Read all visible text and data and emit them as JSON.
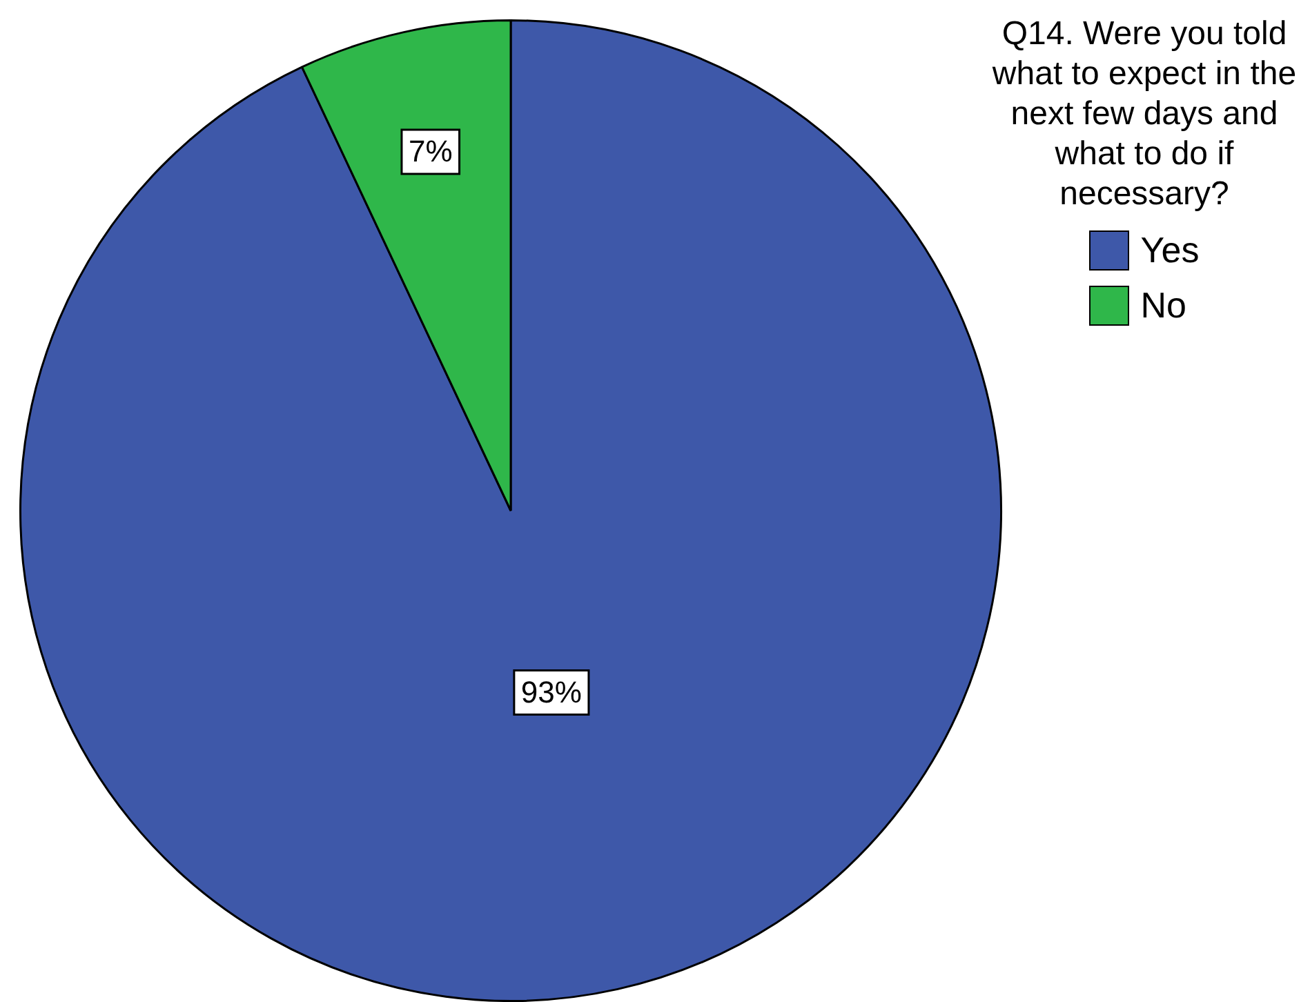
{
  "chart_data": {
    "type": "pie",
    "legend_title": "Q14. Were you told what to expect in the next few days and what to do if necessary?",
    "categories": [
      "Yes",
      "No"
    ],
    "values": [
      93,
      7
    ],
    "colors": [
      "#3e58a9",
      "#2fb74a"
    ],
    "value_labels": [
      "93%",
      "7%"
    ],
    "legend": "top right"
  }
}
